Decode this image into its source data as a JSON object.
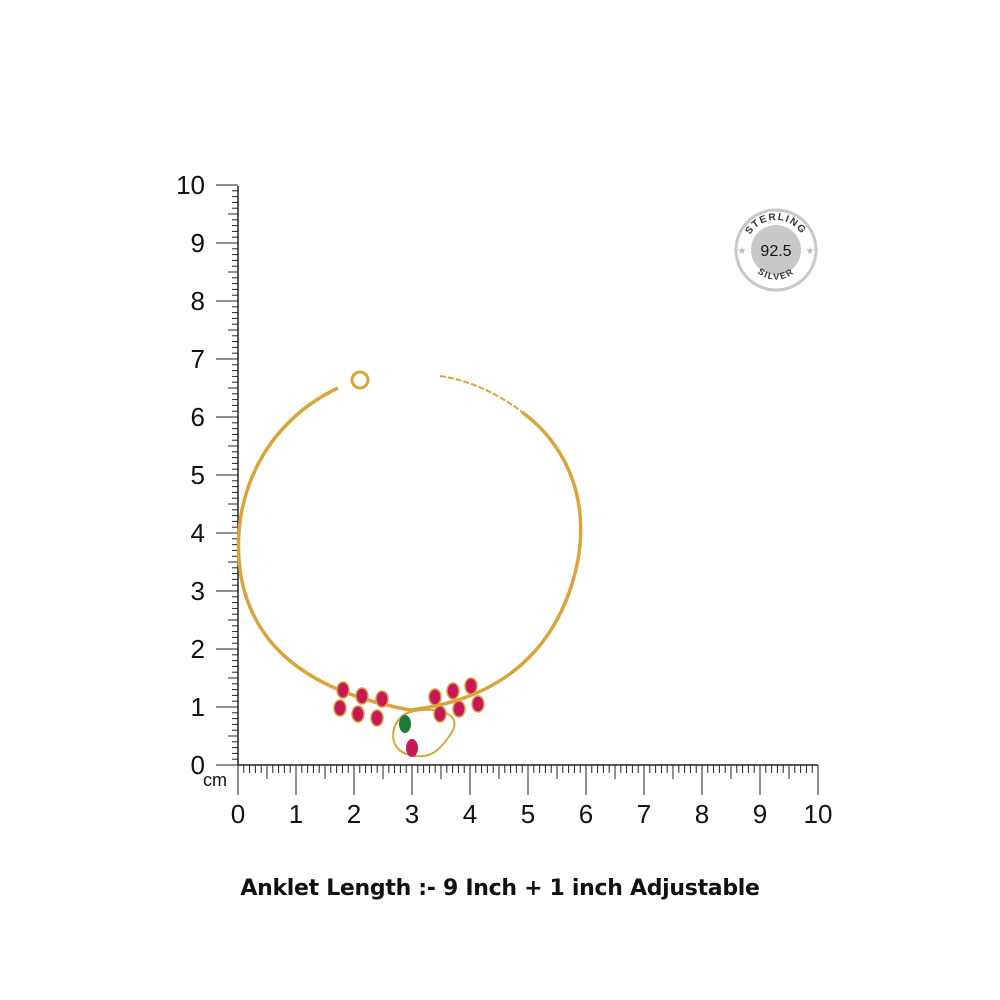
{
  "ruler": {
    "unit_label": "cm",
    "x_ticks": [
      "0",
      "1",
      "2",
      "3",
      "4",
      "5",
      "6",
      "7",
      "8",
      "9",
      "10"
    ],
    "y_ticks": [
      "0",
      "1",
      "2",
      "3",
      "4",
      "5",
      "6",
      "7",
      "8",
      "9",
      "10"
    ],
    "minor_divisions": 10,
    "color": "#222222"
  },
  "badge": {
    "top_text": "STERLING",
    "value": "92.5",
    "bottom_text": "SILVER",
    "color": "#c8c8c8"
  },
  "product": {
    "chain_color": "#d9a43a",
    "stone_color": "#c8185a",
    "center_stone_color": "#1f7a3a"
  },
  "caption": "Anklet Length :- 9 Inch + 1 inch Adjustable"
}
